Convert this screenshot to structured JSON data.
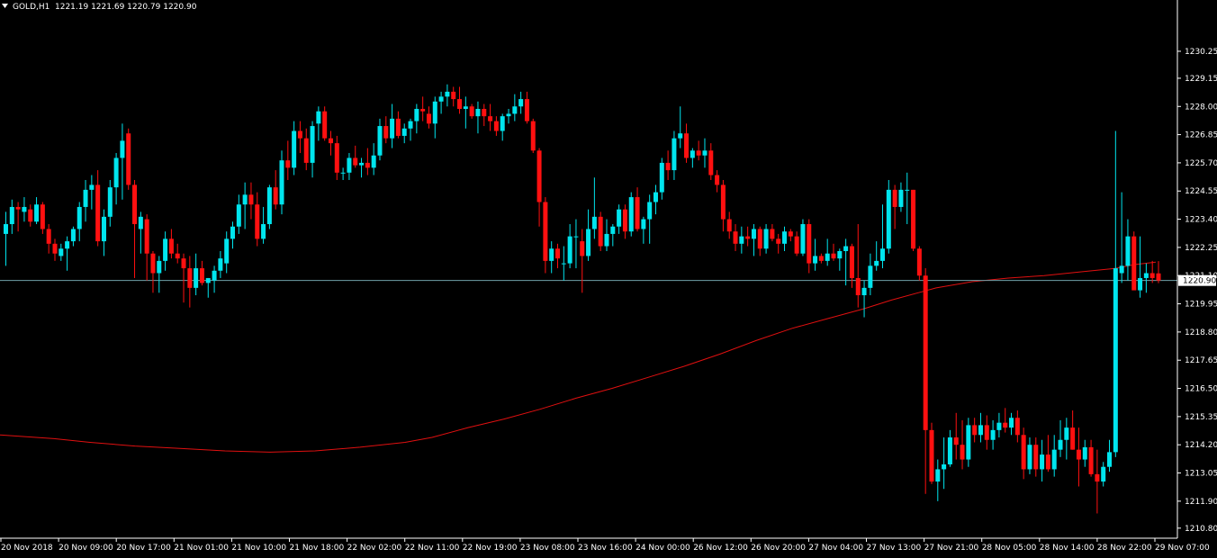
{
  "header": {
    "symbol": "GOLD,H1",
    "ohlc": "1221.19 1221.69 1220.79 1220.90"
  },
  "colors": {
    "background": "#000000",
    "bull": "#00e5ee",
    "bear": "#ff1010",
    "moving_average": "#e01010",
    "price_line": "#6fa0a8",
    "price_label_bg": "#ffffff",
    "axis_text": "#ffffff"
  },
  "chart_data": {
    "type": "candlestick",
    "title": "GOLD,H1",
    "ylim": [
      1210.5,
      1231.35
    ],
    "y_ticks": [
      "1230.25",
      "1229.15",
      "1228.00",
      "1226.85",
      "1225.70",
      "1224.55",
      "1223.40",
      "1222.25",
      "1221.10",
      "1219.95",
      "1218.80",
      "1217.65",
      "1216.50",
      "1215.35",
      "1214.20",
      "1213.05",
      "1211.90",
      "1210.80"
    ],
    "current_price": "1220.90",
    "x_labels": [
      "20 Nov 2018",
      "20 Nov 09:00",
      "20 Nov 17:00",
      "21 Nov 01:00",
      "21 Nov 10:00",
      "21 Nov 18:00",
      "22 Nov 02:00",
      "22 Nov 11:00",
      "22 Nov 19:00",
      "23 Nov 08:00",
      "23 Nov 16:00",
      "24 Nov 00:00",
      "26 Nov 12:00",
      "26 Nov 20:00",
      "27 Nov 04:00",
      "27 Nov 13:00",
      "27 Nov 21:00",
      "28 Nov 05:00",
      "28 Nov 14:00",
      "28 Nov 22:00",
      "29 Nov 07:00"
    ],
    "candles": [
      [
        1222.8,
        1223.7,
        1221.5,
        1223.2
      ],
      [
        1223.2,
        1224.2,
        1222.8,
        1223.9
      ],
      [
        1223.9,
        1224.1,
        1222.9,
        1223.8
      ],
      [
        1223.7,
        1224.3,
        1223.3,
        1223.9
      ],
      [
        1223.8,
        1224.0,
        1223.1,
        1223.3
      ],
      [
        1223.3,
        1224.3,
        1223.2,
        1224.0
      ],
      [
        1224.0,
        1224.1,
        1222.8,
        1223.0
      ],
      [
        1223.0,
        1223.2,
        1222.0,
        1222.4
      ],
      [
        1222.4,
        1222.6,
        1221.7,
        1222.0
      ],
      [
        1221.9,
        1222.4,
        1221.7,
        1222.2
      ],
      [
        1222.2,
        1222.7,
        1221.3,
        1222.5
      ],
      [
        1222.5,
        1223.1,
        1222.3,
        1223.0
      ],
      [
        1223.0,
        1224.1,
        1222.5,
        1223.9
      ],
      [
        1223.9,
        1225.0,
        1223.3,
        1224.6
      ],
      [
        1224.6,
        1225.2,
        1223.8,
        1224.8
      ],
      [
        1224.8,
        1225.4,
        1222.3,
        1222.5
      ],
      [
        1222.5,
        1223.8,
        1221.9,
        1223.5
      ],
      [
        1223.5,
        1225.0,
        1223.1,
        1224.7
      ],
      [
        1224.7,
        1226.1,
        1224.0,
        1225.9
      ],
      [
        1225.9,
        1227.3,
        1224.2,
        1226.6
      ],
      [
        1226.9,
        1227.1,
        1224.6,
        1224.8
      ],
      [
        1224.8,
        1225.0,
        1221.0,
        1223.2
      ],
      [
        1223.0,
        1223.7,
        1222.0,
        1223.5
      ],
      [
        1223.4,
        1223.6,
        1220.9,
        1222.0
      ],
      [
        1222.0,
        1222.1,
        1220.4,
        1221.2
      ],
      [
        1221.2,
        1221.9,
        1220.4,
        1221.7
      ],
      [
        1221.7,
        1222.9,
        1221.3,
        1222.6
      ],
      [
        1222.6,
        1223.0,
        1221.8,
        1222.0
      ],
      [
        1222.0,
        1222.4,
        1221.6,
        1221.8
      ],
      [
        1221.8,
        1222.0,
        1220.0,
        1221.4
      ],
      [
        1221.4,
        1221.9,
        1219.8,
        1220.6
      ],
      [
        1220.6,
        1222.0,
        1220.3,
        1221.4
      ],
      [
        1221.4,
        1221.7,
        1220.7,
        1220.8
      ],
      [
        1220.8,
        1221.0,
        1220.2,
        1221.0
      ],
      [
        1220.9,
        1221.5,
        1220.4,
        1221.3
      ],
      [
        1221.3,
        1222.1,
        1221.0,
        1221.8
      ],
      [
        1221.6,
        1222.9,
        1221.2,
        1222.6
      ],
      [
        1222.6,
        1223.3,
        1222.2,
        1223.1
      ],
      [
        1223.1,
        1224.4,
        1222.8,
        1224.0
      ],
      [
        1224.0,
        1224.9,
        1223.0,
        1224.4
      ],
      [
        1224.4,
        1224.9,
        1223.4,
        1224.0
      ],
      [
        1224.0,
        1224.5,
        1222.3,
        1222.6
      ],
      [
        1222.6,
        1223.9,
        1222.4,
        1223.2
      ],
      [
        1223.2,
        1224.8,
        1223.0,
        1224.7
      ],
      [
        1224.7,
        1225.4,
        1223.8,
        1224.0
      ],
      [
        1224.0,
        1226.2,
        1223.6,
        1225.8
      ],
      [
        1225.8,
        1226.6,
        1225.0,
        1225.5
      ],
      [
        1225.5,
        1227.4,
        1225.2,
        1227.0
      ],
      [
        1227.0,
        1227.4,
        1226.1,
        1226.7
      ],
      [
        1226.7,
        1227.1,
        1225.4,
        1225.7
      ],
      [
        1225.7,
        1227.4,
        1225.1,
        1227.2
      ],
      [
        1227.3,
        1228.0,
        1226.6,
        1227.8
      ],
      [
        1227.8,
        1228.0,
        1226.6,
        1226.7
      ],
      [
        1226.7,
        1227.0,
        1226.0,
        1226.5
      ],
      [
        1226.5,
        1226.8,
        1225.0,
        1225.3
      ],
      [
        1225.3,
        1225.5,
        1225.0,
        1225.3
      ],
      [
        1225.3,
        1226.1,
        1225.0,
        1225.9
      ],
      [
        1225.9,
        1226.4,
        1225.5,
        1225.6
      ],
      [
        1225.6,
        1225.9,
        1225.1,
        1225.7
      ],
      [
        1225.7,
        1226.3,
        1225.2,
        1225.5
      ],
      [
        1225.5,
        1226.5,
        1225.2,
        1226.0
      ],
      [
        1226.0,
        1227.5,
        1225.8,
        1227.2
      ],
      [
        1227.2,
        1227.6,
        1226.5,
        1226.7
      ],
      [
        1226.7,
        1228.1,
        1226.3,
        1227.5
      ],
      [
        1227.5,
        1227.8,
        1226.7,
        1226.8
      ],
      [
        1226.8,
        1227.3,
        1226.5,
        1227.1
      ],
      [
        1227.1,
        1227.5,
        1226.6,
        1227.4
      ],
      [
        1227.4,
        1228.1,
        1226.9,
        1227.9
      ],
      [
        1227.9,
        1228.4,
        1227.4,
        1227.8
      ],
      [
        1227.7,
        1228.0,
        1227.1,
        1227.3
      ],
      [
        1227.3,
        1228.4,
        1226.7,
        1228.2
      ],
      [
        1228.2,
        1228.6,
        1227.7,
        1228.4
      ],
      [
        1228.4,
        1228.9,
        1228.0,
        1228.6
      ],
      [
        1228.6,
        1228.8,
        1228.0,
        1228.3
      ],
      [
        1228.3,
        1228.8,
        1227.7,
        1227.9
      ],
      [
        1227.9,
        1228.4,
        1227.1,
        1228.0
      ],
      [
        1228.0,
        1228.1,
        1227.5,
        1227.6
      ],
      [
        1227.6,
        1228.2,
        1226.9,
        1227.9
      ],
      [
        1227.9,
        1228.1,
        1227.2,
        1227.6
      ],
      [
        1227.6,
        1228.1,
        1227.0,
        1227.4
      ],
      [
        1227.4,
        1227.6,
        1226.8,
        1227.0
      ],
      [
        1227.0,
        1227.7,
        1226.6,
        1227.6
      ],
      [
        1227.6,
        1227.9,
        1227.3,
        1227.7
      ],
      [
        1227.7,
        1228.5,
        1227.4,
        1228.0
      ],
      [
        1228.0,
        1228.6,
        1227.7,
        1228.3
      ],
      [
        1228.3,
        1228.6,
        1227.3,
        1227.4
      ],
      [
        1227.4,
        1227.5,
        1226.1,
        1226.2
      ],
      [
        1226.2,
        1226.3,
        1223.1,
        1224.1
      ],
      [
        1224.1,
        1224.3,
        1221.2,
        1221.7
      ],
      [
        1221.7,
        1222.5,
        1221.2,
        1222.2
      ],
      [
        1222.2,
        1222.4,
        1221.4,
        1221.8
      ],
      [
        1221.6,
        1222.3,
        1220.9,
        1221.6
      ],
      [
        1221.6,
        1223.2,
        1221.4,
        1222.7
      ],
      [
        1222.7,
        1223.4,
        1221.4,
        1222.7
      ],
      [
        1222.5,
        1223.0,
        1220.4,
        1221.9
      ],
      [
        1221.9,
        1223.8,
        1221.7,
        1223.0
      ],
      [
        1223.0,
        1225.1,
        1222.6,
        1223.5
      ],
      [
        1223.5,
        1223.7,
        1222.1,
        1222.3
      ],
      [
        1222.3,
        1223.4,
        1222.1,
        1222.8
      ],
      [
        1222.8,
        1223.2,
        1222.3,
        1223.1
      ],
      [
        1223.1,
        1224.0,
        1222.8,
        1223.8
      ],
      [
        1223.8,
        1224.0,
        1222.6,
        1222.9
      ],
      [
        1222.9,
        1224.5,
        1222.7,
        1224.3
      ],
      [
        1224.3,
        1224.7,
        1222.9,
        1223.0
      ],
      [
        1223.0,
        1223.5,
        1222.4,
        1223.4
      ],
      [
        1223.4,
        1224.4,
        1222.4,
        1224.1
      ],
      [
        1224.1,
        1224.8,
        1223.6,
        1224.5
      ],
      [
        1224.5,
        1225.9,
        1224.2,
        1225.7
      ],
      [
        1225.7,
        1226.2,
        1225.0,
        1225.4
      ],
      [
        1225.4,
        1227.0,
        1225.0,
        1226.7
      ],
      [
        1226.7,
        1228.0,
        1226.3,
        1226.9
      ],
      [
        1226.9,
        1227.3,
        1225.7,
        1225.9
      ],
      [
        1225.9,
        1226.3,
        1225.5,
        1226.2
      ],
      [
        1226.2,
        1226.6,
        1225.8,
        1226.0
      ],
      [
        1226.0,
        1226.7,
        1225.5,
        1226.2
      ],
      [
        1226.2,
        1226.5,
        1225.0,
        1225.2
      ],
      [
        1225.2,
        1225.4,
        1224.5,
        1224.8
      ],
      [
        1224.8,
        1225.0,
        1222.9,
        1223.4
      ],
      [
        1223.4,
        1223.7,
        1222.6,
        1222.9
      ],
      [
        1222.9,
        1223.2,
        1222.1,
        1222.4
      ],
      [
        1222.4,
        1223.1,
        1222.0,
        1222.7
      ],
      [
        1222.7,
        1223.1,
        1222.3,
        1222.6
      ],
      [
        1222.6,
        1223.2,
        1221.9,
        1223.0
      ],
      [
        1223.0,
        1223.1,
        1221.9,
        1222.2
      ],
      [
        1222.2,
        1223.2,
        1222.0,
        1223.0
      ],
      [
        1223.0,
        1223.2,
        1222.5,
        1222.6
      ],
      [
        1222.6,
        1222.8,
        1222.0,
        1222.4
      ],
      [
        1222.4,
        1223.1,
        1222.1,
        1222.9
      ],
      [
        1222.9,
        1223.0,
        1222.5,
        1222.7
      ],
      [
        1222.7,
        1222.9,
        1221.9,
        1222.0
      ],
      [
        1222.0,
        1223.4,
        1221.9,
        1223.2
      ],
      [
        1223.2,
        1223.4,
        1221.2,
        1221.6
      ],
      [
        1221.6,
        1222.6,
        1221.3,
        1221.9
      ],
      [
        1221.9,
        1222.0,
        1221.6,
        1221.7
      ],
      [
        1221.7,
        1222.6,
        1221.5,
        1222.0
      ],
      [
        1222.0,
        1222.4,
        1221.7,
        1221.8
      ],
      [
        1221.8,
        1222.2,
        1221.3,
        1222.1
      ],
      [
        1222.1,
        1222.6,
        1220.7,
        1222.3
      ],
      [
        1222.3,
        1222.4,
        1220.6,
        1221.0
      ],
      [
        1221.0,
        1223.2,
        1219.8,
        1220.3
      ],
      [
        1220.3,
        1220.9,
        1219.4,
        1220.6
      ],
      [
        1220.6,
        1222.0,
        1220.3,
        1221.5
      ],
      [
        1221.5,
        1222.5,
        1221.3,
        1221.7
      ],
      [
        1221.7,
        1224.0,
        1221.4,
        1222.2
      ],
      [
        1222.2,
        1225.0,
        1222.0,
        1224.6
      ],
      [
        1224.6,
        1224.8,
        1223.0,
        1223.9
      ],
      [
        1223.9,
        1224.9,
        1223.7,
        1224.6
      ],
      [
        1224.6,
        1225.3,
        1223.2,
        1224.6
      ],
      [
        1224.6,
        1224.6,
        1222.1,
        1222.2
      ],
      [
        1222.2,
        1222.3,
        1220.9,
        1221.1
      ],
      [
        1221.1,
        1221.4,
        1212.2,
        1214.8
      ],
      [
        1214.8,
        1215.1,
        1212.6,
        1212.7
      ],
      [
        1212.7,
        1213.6,
        1211.9,
        1213.2
      ],
      [
        1213.2,
        1214.5,
        1212.4,
        1213.4
      ],
      [
        1213.4,
        1214.8,
        1213.3,
        1214.5
      ],
      [
        1214.5,
        1215.5,
        1213.6,
        1214.2
      ],
      [
        1214.2,
        1215.2,
        1213.2,
        1213.6
      ],
      [
        1213.6,
        1215.3,
        1213.3,
        1215.0
      ],
      [
        1215.0,
        1215.3,
        1214.3,
        1214.6
      ],
      [
        1214.6,
        1215.5,
        1214.3,
        1215.0
      ],
      [
        1215.0,
        1215.4,
        1214.0,
        1214.4
      ],
      [
        1214.4,
        1215.2,
        1214.0,
        1214.8
      ],
      [
        1214.8,
        1215.5,
        1214.5,
        1215.1
      ],
      [
        1215.1,
        1215.7,
        1214.7,
        1214.9
      ],
      [
        1214.9,
        1215.5,
        1214.6,
        1215.3
      ],
      [
        1215.3,
        1215.6,
        1214.3,
        1214.6
      ],
      [
        1214.6,
        1214.9,
        1212.8,
        1213.2
      ],
      [
        1213.2,
        1214.5,
        1213.0,
        1214.2
      ],
      [
        1214.2,
        1214.5,
        1212.9,
        1213.2
      ],
      [
        1213.2,
        1214.4,
        1212.7,
        1213.8
      ],
      [
        1213.8,
        1214.6,
        1213.1,
        1213.2
      ],
      [
        1213.2,
        1214.6,
        1212.9,
        1214.0
      ],
      [
        1214.0,
        1215.2,
        1213.7,
        1214.4
      ],
      [
        1214.4,
        1215.3,
        1213.6,
        1214.9
      ],
      [
        1214.9,
        1215.6,
        1214.0,
        1214.0
      ],
      [
        1214.0,
        1214.9,
        1212.5,
        1213.6
      ],
      [
        1213.6,
        1214.4,
        1213.3,
        1214.1
      ],
      [
        1214.1,
        1214.4,
        1212.9,
        1213.0
      ],
      [
        1213.0,
        1214.0,
        1211.4,
        1212.7
      ],
      [
        1212.7,
        1213.5,
        1212.5,
        1213.3
      ],
      [
        1213.3,
        1214.4,
        1213.1,
        1213.9
      ],
      [
        1213.9,
        1227.0,
        1213.7,
        1221.4
      ],
      [
        1221.2,
        1224.5,
        1220.8,
        1221.5
      ],
      [
        1221.5,
        1223.4,
        1220.9,
        1222.7
      ],
      [
        1222.7,
        1222.9,
        1220.7,
        1220.5
      ],
      [
        1220.5,
        1222.7,
        1220.2,
        1221.0
      ],
      [
        1221.0,
        1221.6,
        1220.4,
        1221.2
      ],
      [
        1221.2,
        1221.7,
        1220.8,
        1221.0
      ],
      [
        1221.19,
        1221.69,
        1220.79,
        1220.9
      ]
    ],
    "moving_average": [
      [
        0,
        1214.6
      ],
      [
        60,
        1214.45
      ],
      [
        100,
        1214.3
      ],
      [
        150,
        1214.15
      ],
      [
        200,
        1214.05
      ],
      [
        250,
        1213.95
      ],
      [
        300,
        1213.9
      ],
      [
        350,
        1213.95
      ],
      [
        400,
        1214.1
      ],
      [
        450,
        1214.3
      ],
      [
        480,
        1214.5
      ],
      [
        520,
        1214.9
      ],
      [
        560,
        1215.25
      ],
      [
        600,
        1215.65
      ],
      [
        640,
        1216.1
      ],
      [
        680,
        1216.5
      ],
      [
        720,
        1216.95
      ],
      [
        760,
        1217.4
      ],
      [
        800,
        1217.9
      ],
      [
        840,
        1218.45
      ],
      [
        880,
        1218.95
      ],
      [
        920,
        1219.35
      ],
      [
        960,
        1219.75
      ],
      [
        990,
        1220.1
      ],
      [
        1020,
        1220.4
      ],
      [
        1040,
        1220.6
      ],
      [
        1080,
        1220.85
      ],
      [
        1120,
        1221.0
      ],
      [
        1160,
        1221.1
      ],
      [
        1200,
        1221.25
      ],
      [
        1240,
        1221.4
      ],
      [
        1260,
        1221.55
      ],
      [
        1284,
        1221.65
      ]
    ]
  }
}
